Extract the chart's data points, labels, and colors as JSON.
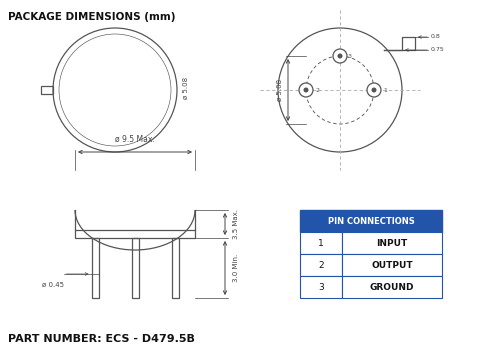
{
  "title": "PACKAGE DIMENSIONS (mm)",
  "part_number": "PART NUMBER: ECS - D479.5B",
  "background_color": "#ffffff",
  "line_color": "#555555",
  "dim_color": "#444444",
  "table_header_bg": "#2255aa",
  "table_header_text": "#ffffff",
  "table_border_color": "#2255aa",
  "pin_connections": [
    [
      "1",
      "INPUT"
    ],
    [
      "2",
      "OUTPUT"
    ],
    [
      "3",
      "GROUND"
    ]
  ]
}
